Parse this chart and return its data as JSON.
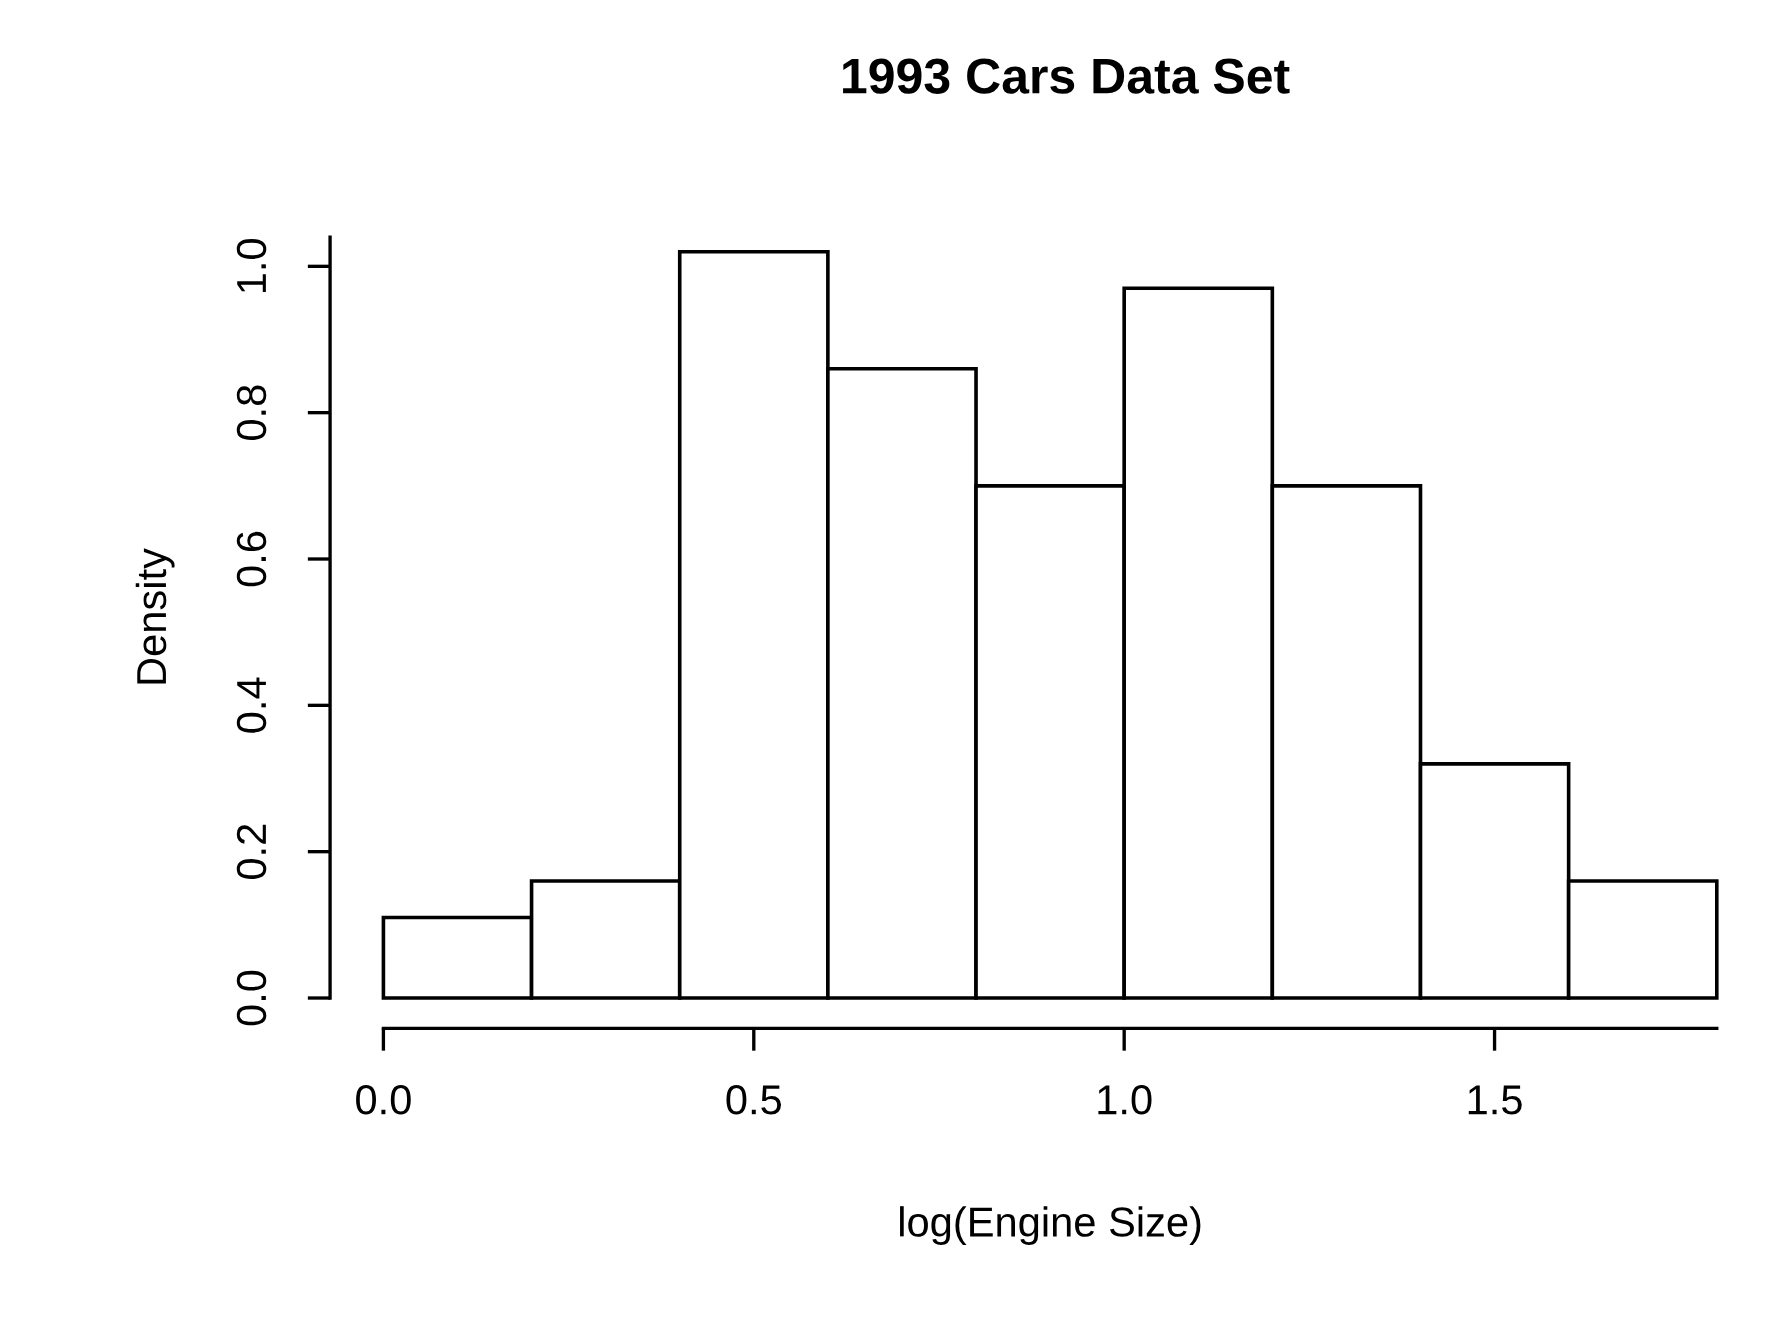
{
  "chart_data": {
    "type": "histogram",
    "title": "1993 Cars Data Set",
    "xlabel": "log(Engine Size)",
    "ylabel": "Density",
    "bins": [
      0.0,
      0.2,
      0.4,
      0.6,
      0.8,
      1.0,
      1.2,
      1.4,
      1.6,
      1.8
    ],
    "values": [
      0.11,
      0.16,
      1.02,
      0.86,
      0.7,
      0.97,
      0.7,
      0.32,
      0.16
    ],
    "color": "#ffffff",
    "xlim": [
      0.0,
      1.8
    ],
    "ylim": [
      0.0,
      1.04
    ],
    "xticks": [
      {
        "value": 0.0,
        "label": "0.0"
      },
      0.5,
      {
        "value": 1.0,
        "label": "1.0"
      },
      1.5
    ],
    "yticks": [
      {
        "value": 0.0,
        "label": "0.0"
      },
      0.2,
      0.4,
      0.6,
      0.8,
      {
        "value": 1.0,
        "label": "1.0"
      }
    ],
    "grid": false
  }
}
